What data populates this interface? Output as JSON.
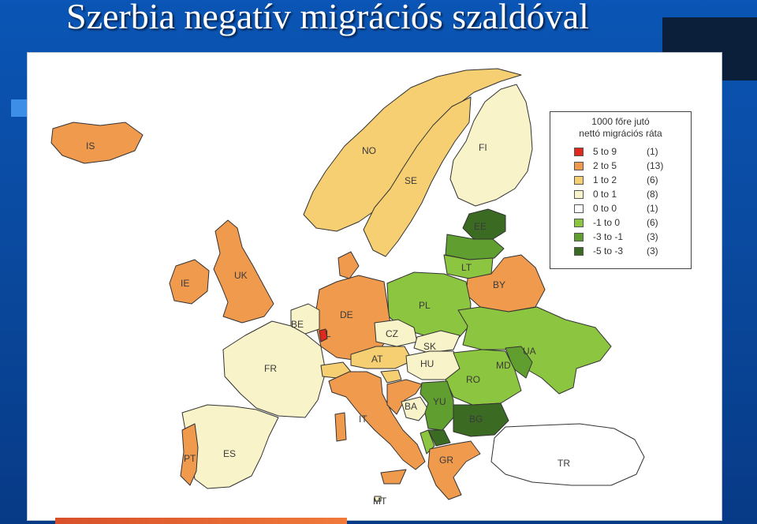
{
  "slide": {
    "title": "Szerbia negatív migrációs szaldóval"
  },
  "legend": {
    "title_line1": "1000 főre jutó",
    "title_line2": "nettó migrációs ráta",
    "items": [
      {
        "range": "5 to  9",
        "count": "(1)",
        "color": "#e0281e"
      },
      {
        "range": "2 to  5",
        "count": "(13)",
        "color": "#f09a4e"
      },
      {
        "range": "1 to  2",
        "count": "(6)",
        "color": "#f5cf72"
      },
      {
        "range": "0 to  1",
        "count": "(8)",
        "color": "#f8f3c8"
      },
      {
        "range": "0 to  0",
        "count": "(1)",
        "color": "#ffffff"
      },
      {
        "range": "-1 to  0",
        "count": "(6)",
        "color": "#8cc540"
      },
      {
        "range": "-3 to -1",
        "count": "(3)",
        "color": "#5f9e2f"
      },
      {
        "range": "-5 to -3",
        "count": "(3)",
        "color": "#3b6b22"
      }
    ]
  },
  "countries": {
    "IS": "IS",
    "NO": "NO",
    "SE": "SE",
    "FI": "FI",
    "EE": "EE",
    "LT": "LT",
    "BY": "BY",
    "PL": "PL",
    "DE": "DE",
    "BE": "BE",
    "CZ": "CZ",
    "SK": "SK",
    "AT": "AT",
    "HU": "HU",
    "UA": "UA",
    "MD": "MD",
    "RO": "RO",
    "FR": "FR",
    "IT": "IT",
    "ES": "ES",
    "PT": "PT",
    "YU": "YU",
    "BA": "BA",
    "BG": "BG",
    "GR": "GR",
    "TR": "TR",
    "MT": "MT",
    "LU": "L",
    "UK": "UK",
    "IE": "IE"
  }
}
